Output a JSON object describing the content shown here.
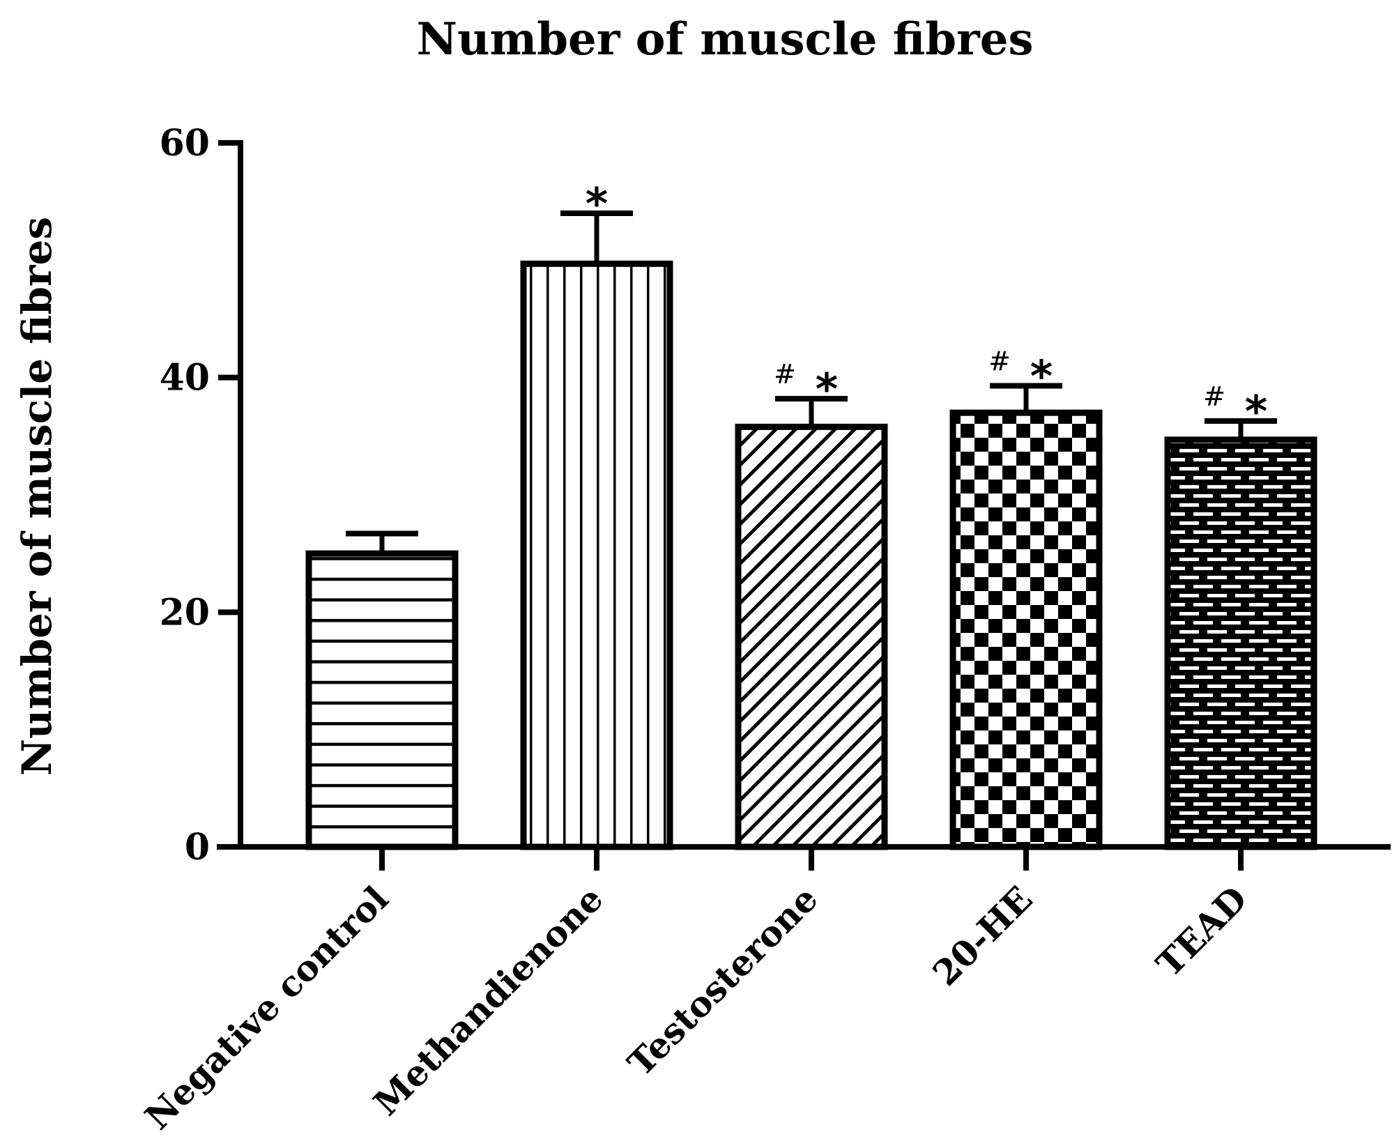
{
  "chart_data": {
    "type": "bar",
    "title": "Number of muscle fibres",
    "xlabel": "",
    "ylabel": "Number of muscle fibres",
    "ylim": [
      0,
      60
    ],
    "yticks": [
      "0",
      "20",
      "40",
      "60"
    ],
    "categories": [
      "Negative control",
      "Methandienone",
      "Testosterone",
      "20-HE",
      "TEAD"
    ],
    "values": [
      25,
      49.7,
      35.8,
      37,
      34.7
    ],
    "errors": [
      1.7,
      4.3,
      2.4,
      2.3,
      1.6
    ],
    "annotations": [
      {
        "hash": "",
        "star": ""
      },
      {
        "hash": "",
        "star": "*"
      },
      {
        "hash": "#",
        "star": "*"
      },
      {
        "hash": "#",
        "star": "*"
      },
      {
        "hash": "#",
        "star": "*"
      }
    ],
    "fill_patterns": [
      "horizontal-lines",
      "vertical-lines",
      "diagonal-lines",
      "checkerboard",
      "brick"
    ],
    "grid": false,
    "legend": "none",
    "colors": {
      "bar_stroke": "#000000",
      "bar_fill": "#ffffff"
    }
  }
}
